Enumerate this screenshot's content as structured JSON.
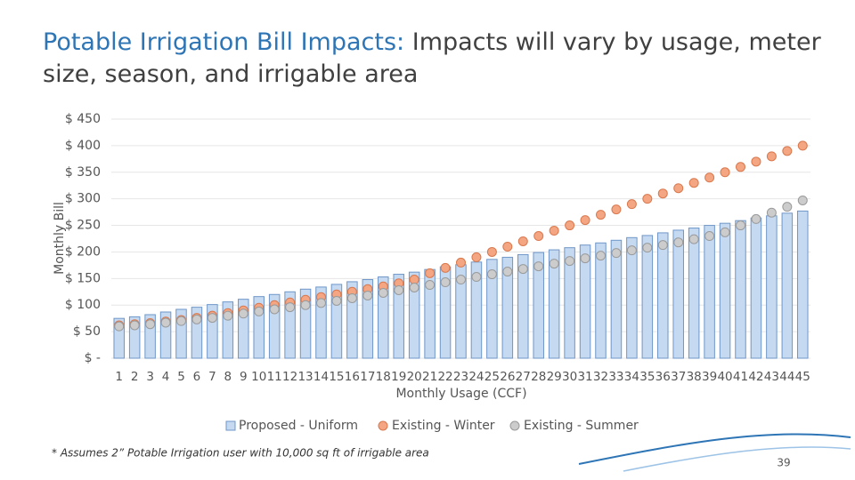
{
  "chart_data": {
    "type": "bar",
    "title_lead": "Potable Irrigation Bill Impacts:",
    "title": "Impacts will vary by usage, meter size, season, and irrigable area",
    "y_label": "Monthly Bill",
    "x_label": "Monthly Usage (CCF)",
    "categories": [
      "1",
      "2",
      "3",
      "4",
      "5",
      "6",
      "7",
      "8",
      "9",
      "10",
      "11",
      "12",
      "13",
      "14",
      "15",
      "16",
      "17",
      "18",
      "19",
      "20",
      "21",
      "22",
      "23",
      "24",
      "25",
      "26",
      "27",
      "28",
      "29",
      "30",
      "31",
      "32",
      "33",
      "34",
      "35",
      "36",
      "37",
      "38",
      "39",
      "40",
      "41",
      "42",
      "43",
      "44",
      "45"
    ],
    "series": [
      {
        "name": "Proposed - Uniform",
        "type": "bar",
        "color": "#c5d9f1",
        "stroke": "#6f97c8",
        "values": [
          75,
          78,
          82,
          87,
          92,
          96,
          101,
          106,
          111,
          116,
          120,
          125,
          130,
          134,
          139,
          144,
          148,
          153,
          158,
          162,
          167,
          172,
          176,
          181,
          186,
          190,
          195,
          199,
          204,
          208,
          213,
          217,
          222,
          227,
          231,
          236,
          241,
          245,
          250,
          254,
          259,
          264,
          268,
          273,
          277
        ]
      },
      {
        "name": "Existing - Winter",
        "type": "dot",
        "color": "#f4a582",
        "stroke": "#d9794e",
        "values": [
          62,
          64,
          66,
          69,
          72,
          76,
          80,
          85,
          90,
          95,
          100,
          105,
          110,
          115,
          120,
          125,
          130,
          135,
          141,
          148,
          160,
          170,
          180,
          190,
          200,
          210,
          220,
          230,
          240,
          250,
          260,
          270,
          280,
          290,
          300,
          310,
          320,
          330,
          340,
          350,
          360,
          370,
          380,
          390,
          400
        ]
      },
      {
        "name": "Existing - Summer",
        "type": "dot",
        "color": "#cccccc",
        "stroke": "#9a9a9a",
        "values": [
          60,
          62,
          64,
          67,
          70,
          73,
          76,
          80,
          84,
          88,
          92,
          96,
          100,
          104,
          108,
          113,
          118,
          123,
          128,
          133,
          138,
          143,
          148,
          153,
          158,
          163,
          168,
          173,
          178,
          183,
          188,
          193,
          198,
          203,
          208,
          213,
          218,
          224,
          230,
          237,
          250,
          262,
          274,
          285,
          297
        ]
      }
    ],
    "ylim": [
      0,
      450
    ],
    "yticks": [
      {
        "value": 0,
        "label": "$ -"
      },
      {
        "value": 50,
        "label": "$ 50"
      },
      {
        "value": 100,
        "label": "$ 100"
      },
      {
        "value": 150,
        "label": "$ 150"
      },
      {
        "value": 200,
        "label": "$ 200"
      },
      {
        "value": 250,
        "label": "$ 250"
      },
      {
        "value": 300,
        "label": "$ 300"
      },
      {
        "value": 350,
        "label": "$ 350"
      },
      {
        "value": 400,
        "label": "$ 400"
      },
      {
        "value": 450,
        "label": "$ 450"
      }
    ],
    "grid": true,
    "legend": "bottom",
    "footnote": "* Assumes 2” Potable Irrigation user with 10,000 sq ft of irrigable area",
    "page_number": "39"
  }
}
